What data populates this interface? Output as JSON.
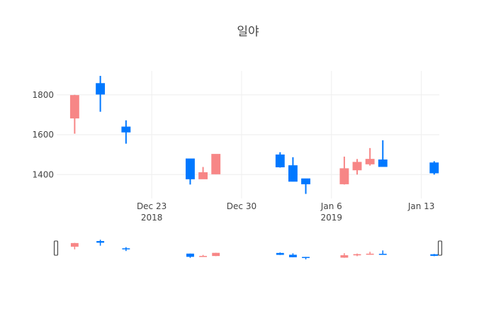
{
  "chart_data": {
    "type": "candlestick",
    "title": "일야",
    "xlabel": "",
    "ylabel": "",
    "x_ticks": [
      {
        "date": "2018-12-23",
        "label": "Dec 23",
        "sublabel": "2018"
      },
      {
        "date": "2018-12-30",
        "label": "Dec 30",
        "sublabel": ""
      },
      {
        "date": "2019-01-06",
        "label": "Jan 6",
        "sublabel": "2019"
      },
      {
        "date": "2019-01-13",
        "label": "Jan 13",
        "sublabel": ""
      }
    ],
    "y_ticks": [
      1400,
      1600,
      1800
    ],
    "xlim": [
      "2018-12-16",
      "2019-01-14"
    ],
    "ylim": [
      1280,
      1920
    ],
    "grid": true,
    "rangeslider": true,
    "increasing_color": "#0078FF",
    "decreasing_color": "#F78686",
    "candles": [
      {
        "date": "2018-12-17",
        "open": 1795,
        "high": 1800,
        "low": 1605,
        "close": 1685
      },
      {
        "date": "2018-12-19",
        "open": 1805,
        "high": 1895,
        "low": 1715,
        "close": 1855
      },
      {
        "date": "2018-12-21",
        "open": 1615,
        "high": 1672,
        "low": 1555,
        "close": 1637
      },
      {
        "date": "2018-12-26",
        "open": 1380,
        "high": 1478,
        "low": 1350,
        "close": 1477
      },
      {
        "date": "2018-12-27",
        "open": 1408,
        "high": 1438,
        "low": 1378,
        "close": 1380
      },
      {
        "date": "2018-12-28",
        "open": 1500,
        "high": 1502,
        "low": 1402,
        "close": 1405
      },
      {
        "date": "2019-01-02",
        "open": 1440,
        "high": 1512,
        "low": 1435,
        "close": 1497
      },
      {
        "date": "2019-01-03",
        "open": 1368,
        "high": 1487,
        "low": 1365,
        "close": 1443
      },
      {
        "date": "2019-01-04",
        "open": 1355,
        "high": 1378,
        "low": 1303,
        "close": 1377
      },
      {
        "date": "2019-01-07",
        "open": 1428,
        "high": 1490,
        "low": 1350,
        "close": 1355
      },
      {
        "date": "2019-01-08",
        "open": 1460,
        "high": 1478,
        "low": 1400,
        "close": 1425
      },
      {
        "date": "2019-01-09",
        "open": 1475,
        "high": 1533,
        "low": 1445,
        "close": 1455
      },
      {
        "date": "2019-01-10",
        "open": 1442,
        "high": 1572,
        "low": 1440,
        "close": 1472
      },
      {
        "date": "2019-01-14",
        "open": 1410,
        "high": 1467,
        "low": 1400,
        "close": 1457
      }
    ]
  }
}
